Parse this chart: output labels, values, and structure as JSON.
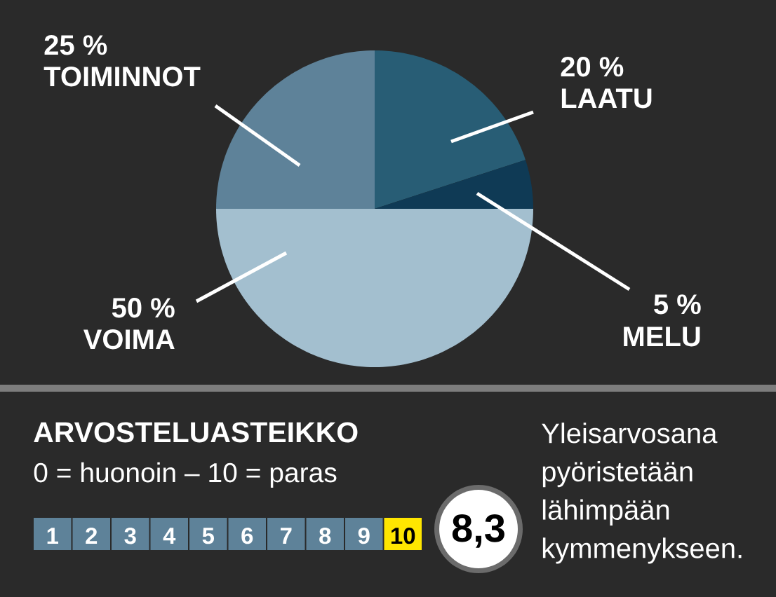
{
  "chart_data": [
    {
      "type": "pie",
      "categories": [
        "LAATU",
        "MELU",
        "VOIMA",
        "TOIMINNOT"
      ],
      "values": [
        20,
        5,
        50,
        25
      ],
      "colors": [
        "#285d75",
        "#0f3a55",
        "#a3bfcf",
        "#5e8299"
      ],
      "value_labels": [
        "20 %",
        "5 %",
        "50 %",
        "25 %"
      ]
    },
    {
      "type": "heatmap",
      "title": "ARVOSTELUASTEIKKO",
      "subtitle": "0 = huonoin – 10 = paras",
      "categories": [
        null,
        null,
        null,
        null,
        null,
        null,
        null,
        null,
        null,
        null
      ],
      "y_categories": [
        null
      ],
      "cells": [
        [
          1,
          2,
          3,
          4,
          5,
          6,
          7,
          8,
          9,
          10
        ]
      ],
      "data_labels": true,
      "colors": [
        "#5e8299",
        "#5e8299",
        "#5e8299",
        "#5e8299",
        "#5e8299",
        "#5e8299",
        "#5e8299",
        "#5e8299",
        "#5e8299",
        "#ffe600"
      ],
      "annotations": [
        "8,3",
        "Yleisarvosana pyöristetään lähimpään kymmenykseen."
      ]
    }
  ]
}
